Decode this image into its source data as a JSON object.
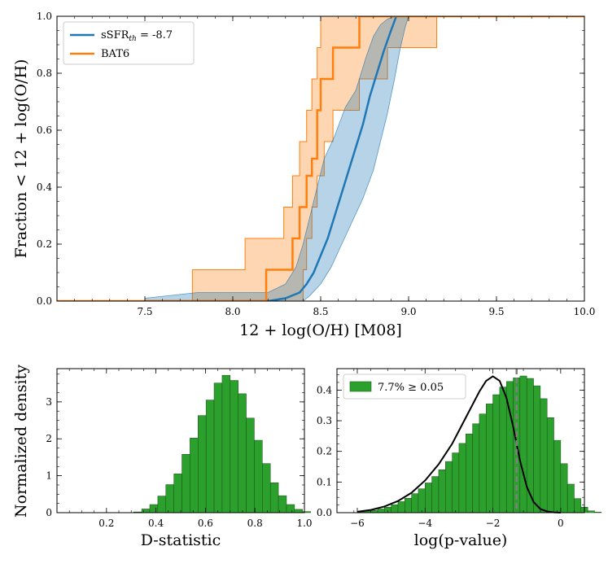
{
  "chart_data": [
    {
      "type": "line",
      "ylabel": "Fraction < 12 + log(O/H)",
      "xlabel": "12 + log(O/H) [M08]",
      "xlim": [
        7.0,
        10.0
      ],
      "ylim": [
        0.0,
        1.0
      ],
      "xticks": [
        "7.5",
        "8.0",
        "8.5",
        "9.0",
        "9.5",
        "10.0"
      ],
      "yticks": [
        "0.0",
        "0.2",
        "0.4",
        "0.6",
        "0.8",
        "1.0"
      ],
      "legend_position": "top-left",
      "colors": {
        "model": "#1f77b4",
        "bat6": "#ff7f0e"
      },
      "series": [
        {
          "name": "sSFR",
          "name_subscript": "th",
          "name_suffix": " = -8.7",
          "kind": "median-with-band",
          "median": [
            [
              7.5,
              0.0
            ],
            [
              8.2,
              0.0
            ],
            [
              8.3,
              0.01
            ],
            [
              8.38,
              0.03
            ],
            [
              8.42,
              0.06
            ],
            [
              8.46,
              0.1
            ],
            [
              8.5,
              0.16
            ],
            [
              8.54,
              0.22
            ],
            [
              8.58,
              0.3
            ],
            [
              8.62,
              0.38
            ],
            [
              8.66,
              0.46
            ],
            [
              8.7,
              0.54
            ],
            [
              8.74,
              0.62
            ],
            [
              8.78,
              0.72
            ],
            [
              8.82,
              0.8
            ],
            [
              8.86,
              0.88
            ],
            [
              8.9,
              0.95
            ],
            [
              8.93,
              1.0
            ]
          ],
          "band_upper": [
            [
              7.5,
              0.01
            ],
            [
              7.8,
              0.03
            ],
            [
              8.2,
              0.03
            ],
            [
              8.3,
              0.06
            ],
            [
              8.36,
              0.12
            ],
            [
              8.4,
              0.2
            ],
            [
              8.44,
              0.3
            ],
            [
              8.48,
              0.4
            ],
            [
              8.52,
              0.5
            ],
            [
              8.58,
              0.58
            ],
            [
              8.64,
              0.68
            ],
            [
              8.7,
              0.74
            ],
            [
              8.76,
              0.86
            ],
            [
              8.8,
              0.93
            ],
            [
              8.84,
              0.97
            ],
            [
              8.88,
              0.99
            ],
            [
              8.92,
              1.0
            ]
          ],
          "band_lower": [
            [
              7.5,
              0.0
            ],
            [
              8.3,
              0.0
            ],
            [
              8.4,
              0.0
            ],
            [
              8.44,
              0.02
            ],
            [
              8.5,
              0.06
            ],
            [
              8.56,
              0.12
            ],
            [
              8.62,
              0.2
            ],
            [
              8.68,
              0.28
            ],
            [
              8.74,
              0.36
            ],
            [
              8.8,
              0.46
            ],
            [
              8.84,
              0.56
            ],
            [
              8.88,
              0.66
            ],
            [
              8.92,
              0.78
            ],
            [
              8.95,
              0.88
            ],
            [
              8.98,
              0.96
            ],
            [
              9.0,
              1.0
            ]
          ]
        },
        {
          "name": "BAT6",
          "kind": "step-with-band",
          "median_steps": [
            [
              7.0,
              0.0
            ],
            [
              8.19,
              0.0
            ],
            [
              8.19,
              0.11
            ],
            [
              8.34,
              0.11
            ],
            [
              8.34,
              0.22
            ],
            [
              8.38,
              0.22
            ],
            [
              8.38,
              0.33
            ],
            [
              8.42,
              0.33
            ],
            [
              8.42,
              0.44
            ],
            [
              8.45,
              0.44
            ],
            [
              8.45,
              0.5
            ],
            [
              8.48,
              0.5
            ],
            [
              8.48,
              0.67
            ],
            [
              8.5,
              0.67
            ],
            [
              8.5,
              0.78
            ],
            [
              8.57,
              0.78
            ],
            [
              8.57,
              0.89
            ],
            [
              8.72,
              0.89
            ],
            [
              8.72,
              1.0
            ],
            [
              10.0,
              1.0
            ]
          ],
          "band_upper_steps": [
            [
              7.0,
              0.0
            ],
            [
              7.77,
              0.0
            ],
            [
              7.77,
              0.11
            ],
            [
              8.07,
              0.11
            ],
            [
              8.07,
              0.22
            ],
            [
              8.29,
              0.22
            ],
            [
              8.29,
              0.33
            ],
            [
              8.34,
              0.33
            ],
            [
              8.34,
              0.44
            ],
            [
              8.38,
              0.44
            ],
            [
              8.38,
              0.56
            ],
            [
              8.42,
              0.56
            ],
            [
              8.42,
              0.67
            ],
            [
              8.45,
              0.67
            ],
            [
              8.45,
              0.78
            ],
            [
              8.48,
              0.78
            ],
            [
              8.48,
              0.89
            ],
            [
              8.5,
              0.89
            ],
            [
              8.5,
              1.0
            ],
            [
              10.0,
              1.0
            ]
          ],
          "band_lower_steps": [
            [
              7.0,
              0.0
            ],
            [
              8.4,
              0.0
            ],
            [
              8.4,
              0.11
            ],
            [
              8.42,
              0.11
            ],
            [
              8.42,
              0.22
            ],
            [
              8.45,
              0.22
            ],
            [
              8.45,
              0.33
            ],
            [
              8.48,
              0.33
            ],
            [
              8.48,
              0.44
            ],
            [
              8.52,
              0.44
            ],
            [
              8.52,
              0.56
            ],
            [
              8.57,
              0.56
            ],
            [
              8.57,
              0.67
            ],
            [
              8.72,
              0.67
            ],
            [
              8.72,
              0.78
            ],
            [
              8.88,
              0.78
            ],
            [
              8.88,
              0.89
            ],
            [
              9.16,
              0.89
            ],
            [
              9.16,
              1.0
            ],
            [
              10.0,
              1.0
            ]
          ]
        }
      ]
    },
    {
      "type": "bar",
      "subtype": "histogram",
      "xlabel": "D-statistic",
      "ylabel": "Normalized density",
      "xlim": [
        0.0,
        1.0
      ],
      "ylim": [
        0,
        3.9
      ],
      "xticks": [
        "0.2",
        "0.4",
        "0.6",
        "0.8",
        "1.0"
      ],
      "yticks": [
        "0",
        "1",
        "2",
        "3"
      ],
      "color": "#2ca02c",
      "bin_start": 0.31,
      "bin_width": 0.0325,
      "values": [
        0.02,
        0.1,
        0.22,
        0.45,
        0.76,
        1.05,
        1.58,
        2.02,
        2.63,
        3.05,
        3.51,
        3.72,
        3.58,
        3.22,
        2.56,
        1.96,
        1.33,
        0.81,
        0.46,
        0.22,
        0.09,
        0.03
      ]
    },
    {
      "type": "bar",
      "subtype": "histogram",
      "xlabel": "log(p-value)",
      "xlim": [
        -6.6,
        0.7
      ],
      "ylim": [
        0,
        0.47
      ],
      "xticks": [
        "−6",
        "−4",
        "−2",
        "0"
      ],
      "yticks": [
        "0.0",
        "0.1",
        "0.2",
        "0.3",
        "0.4"
      ],
      "color": "#2ca02c",
      "legend": "7.7% ≥ 0.05",
      "legend_position": "top-left",
      "threshold_line_x": -1.3,
      "bin_start": -6.0,
      "bin_width": 0.2,
      "values": [
        0.003,
        0.005,
        0.008,
        0.012,
        0.018,
        0.026,
        0.036,
        0.047,
        0.062,
        0.078,
        0.097,
        0.118,
        0.14,
        0.167,
        0.195,
        0.226,
        0.257,
        0.29,
        0.322,
        0.355,
        0.385,
        0.41,
        0.428,
        0.44,
        0.446,
        0.438,
        0.414,
        0.372,
        0.31,
        0.236,
        0.16,
        0.093,
        0.046,
        0.018,
        0.006,
        0.002
      ],
      "kde_x": [
        -6.0,
        -5.6,
        -5.2,
        -4.8,
        -4.4,
        -4.0,
        -3.6,
        -3.2,
        -2.8,
        -2.4,
        -2.2,
        -2.0,
        -1.8,
        -1.6,
        -1.4,
        -1.2,
        -1.0,
        -0.8,
        -0.6,
        -0.4,
        -0.2,
        0.0
      ],
      "kde_y": [
        0.003,
        0.009,
        0.02,
        0.038,
        0.065,
        0.105,
        0.158,
        0.225,
        0.31,
        0.395,
        0.43,
        0.445,
        0.43,
        0.375,
        0.28,
        0.17,
        0.085,
        0.035,
        0.012,
        0.004,
        0.001,
        0.0
      ]
    }
  ]
}
